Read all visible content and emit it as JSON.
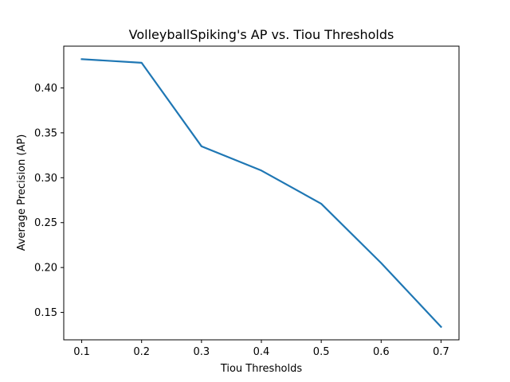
{
  "chart_data": {
    "type": "line",
    "title": "VolleyballSpiking's AP vs. Tiou Thresholds",
    "xlabel": "Tiou Thresholds",
    "ylabel": "Average Precision (AP)",
    "xlim": [
      0.07,
      0.73
    ],
    "ylim": [
      0.1195,
      0.4465
    ],
    "x_ticks": [
      0.1,
      0.2,
      0.3,
      0.4,
      0.5,
      0.6,
      0.7
    ],
    "x_tick_labels": [
      "0.1",
      "0.2",
      "0.3",
      "0.4",
      "0.5",
      "0.6",
      "0.7"
    ],
    "y_ticks": [
      0.15,
      0.2,
      0.25,
      0.3,
      0.35,
      0.4
    ],
    "y_tick_labels": [
      "0.15",
      "0.20",
      "0.25",
      "0.30",
      "0.35",
      "0.40"
    ],
    "grid": false,
    "series": [
      {
        "x": [
          0.1,
          0.2,
          0.3,
          0.4,
          0.5,
          0.6,
          0.7
        ],
        "values": [
          0.432,
          0.428,
          0.335,
          0.308,
          0.271,
          0.205,
          0.134
        ],
        "color": "#1f77b4"
      }
    ]
  }
}
